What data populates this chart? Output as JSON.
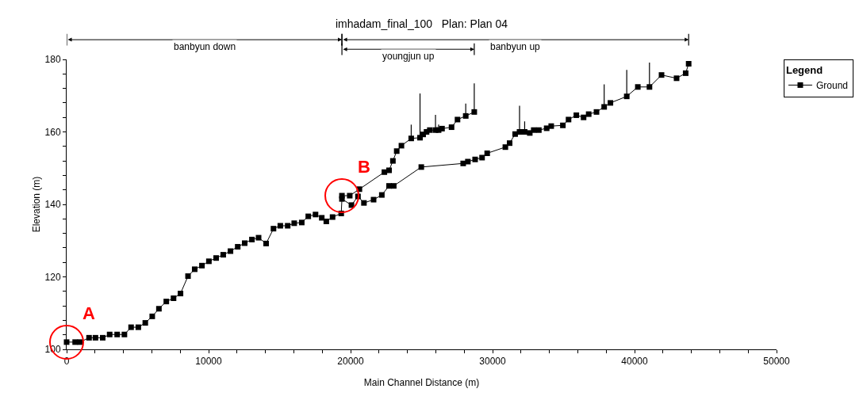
{
  "chart_data": {
    "type": "line",
    "title": "imhadam_final_100   Plan: Plan 04",
    "xlabel": "Main Channel Distance (m)",
    "ylabel": "Elevation (m)",
    "legend_title": "Legend",
    "legend": "top right",
    "marker": "square",
    "line_style": "solid",
    "grid": false,
    "xlim": [
      0,
      50000
    ],
    "ylim": [
      100,
      180
    ],
    "xticks": [
      0,
      {
        "value": 2000,
        "label": null
      },
      {
        "value": 4000,
        "label": null
      },
      {
        "value": 6000,
        "label": null
      },
      {
        "value": 8000,
        "label": null
      },
      10000,
      {
        "value": 12000,
        "label": null
      },
      {
        "value": 14000,
        "label": null
      },
      {
        "value": 16000,
        "label": null
      },
      {
        "value": 18000,
        "label": null
      },
      20000,
      {
        "value": 22000,
        "label": null
      },
      {
        "value": 24000,
        "label": null
      },
      {
        "value": 26000,
        "label": null
      },
      {
        "value": 28000,
        "label": null
      },
      30000,
      {
        "value": 32000,
        "label": null
      },
      {
        "value": 34000,
        "label": null
      },
      {
        "value": 36000,
        "label": null
      },
      {
        "value": 38000,
        "label": null
      },
      40000,
      {
        "value": 42000,
        "label": null
      },
      {
        "value": 44000,
        "label": null
      },
      {
        "value": 46000,
        "label": null
      },
      {
        "value": 48000,
        "label": null
      },
      50000
    ],
    "yticks": [
      100,
      {
        "value": 104,
        "label": null
      },
      {
        "value": 108,
        "label": null
      },
      {
        "value": 112,
        "label": null
      },
      {
        "value": 116,
        "label": null
      },
      120,
      {
        "value": 124,
        "label": null
      },
      {
        "value": 128,
        "label": null
      },
      {
        "value": 132,
        "label": null
      },
      {
        "value": 136,
        "label": null
      },
      140,
      {
        "value": 144,
        "label": null
      },
      {
        "value": 148,
        "label": null
      },
      {
        "value": 152,
        "label": null
      },
      {
        "value": 156,
        "label": null
      },
      160,
      {
        "value": 164,
        "label": null
      },
      {
        "value": 168,
        "label": null
      },
      {
        "value": 172,
        "label": null
      },
      {
        "value": 176,
        "label": null
      },
      180
    ],
    "annotations": [
      "A",
      "B",
      "banbyun down",
      "banbyun up",
      "youngjun up"
    ],
    "series": [
      {
        "name": "Ground",
        "color": "#000000",
        "x": [
          0,
          600,
          950,
          1580,
          2030,
          2540,
          3030,
          3560,
          4070,
          4540,
          5050,
          5540,
          6030,
          6500,
          7020,
          7530,
          8020,
          8550,
          9020,
          9530,
          10020,
          10530,
          11030,
          11540,
          12050,
          12540,
          13050,
          13520,
          14050,
          14570,
          15050,
          15570,
          16030,
          16560,
          17020,
          17530,
          17970,
          18290,
          18730,
          19340,
          19390,
          20060,
          20520,
          20940,
          21620,
          22200,
          22710,
          23040,
          24980,
          27930,
          28260,
          28770,
          29260,
          29620,
          30900,
          31200,
          31590,
          31900,
          32260,
          32620,
          32900,
          33260,
          33810,
          34130,
          34950,
          35350,
          35900,
          36410,
          36770,
          37320,
          37860,
          38300,
          39450,
          40230,
          41050,
          41900,
          42960,
          43600,
          43810
        ],
        "values": [
          102.0,
          102.0,
          102.0,
          103.2,
          103.2,
          103.2,
          104.1,
          104.1,
          104.1,
          106.1,
          106.1,
          107.3,
          109.1,
          111.2,
          113.2,
          114.1,
          115.4,
          120.2,
          122.1,
          123.1,
          124.3,
          125.2,
          126.1,
          127.1,
          128.3,
          129.3,
          130.3,
          130.8,
          129.2,
          133.3,
          134.1,
          134.1,
          134.8,
          135.0,
          136.7,
          137.2,
          136.3,
          135.3,
          136.5,
          137.5,
          141.5,
          139.8,
          142.2,
          140.4,
          141.3,
          142.6,
          145.1,
          145.1,
          150.3,
          151.3,
          151.8,
          152.4,
          152.9,
          154.1,
          155.8,
          156.9,
          159.4,
          160.0,
          160.0,
          159.7,
          160.5,
          160.5,
          161.0,
          161.6,
          161.8,
          163.4,
          164.6,
          164.0,
          164.9,
          165.5,
          166.9,
          168.0,
          169.8,
          172.4,
          172.4,
          175.7,
          174.8,
          176.2,
          178.8
        ],
        "errors": [
          null,
          null,
          null,
          null,
          null,
          null,
          null,
          null,
          null,
          null,
          null,
          null,
          null,
          null,
          null,
          null,
          null,
          null,
          null,
          null,
          null,
          null,
          null,
          null,
          null,
          null,
          null,
          null,
          null,
          null,
          null,
          null,
          null,
          null,
          null,
          null,
          null,
          null,
          null,
          null,
          null,
          null,
          null,
          null,
          null,
          null,
          null,
          null,
          null,
          null,
          null,
          null,
          null,
          null,
          null,
          null,
          null,
          [
            160.0,
            167.2
          ],
          [
            160.0,
            162.9
          ],
          null,
          null,
          null,
          null,
          null,
          null,
          null,
          null,
          null,
          null,
          null,
          [
            166.9,
            173.1
          ],
          null,
          [
            169.8,
            177.1
          ],
          null,
          [
            172.4,
            179.1
          ],
          null,
          null,
          null,
          null
        ]
      },
      {
        "color": "#000000",
        "x": [
          19390,
          19940,
          20620,
          22380,
          22710,
          22980,
          23250,
          23580,
          24270,
          24890,
          25110,
          25350,
          25580,
          25980,
          26200,
          26440,
          27110,
          27530,
          28110,
          28710
        ],
        "values": [
          142.4,
          142.4,
          144.2,
          148.9,
          149.4,
          152.0,
          154.7,
          156.2,
          158.2,
          158.4,
          159.3,
          160.0,
          160.5,
          160.5,
          160.5,
          160.9,
          161.3,
          163.4,
          164.4,
          165.5
        ],
        "errors": [
          null,
          null,
          null,
          null,
          null,
          null,
          null,
          null,
          [
            158.2,
            162.0
          ],
          [
            158.4,
            170.6
          ],
          null,
          null,
          null,
          [
            160.5,
            164.7
          ],
          [
            160.5,
            162.0
          ],
          null,
          null,
          null,
          [
            164.4,
            167.8
          ],
          [
            165.5,
            173.4
          ]
        ]
      }
    ]
  }
}
